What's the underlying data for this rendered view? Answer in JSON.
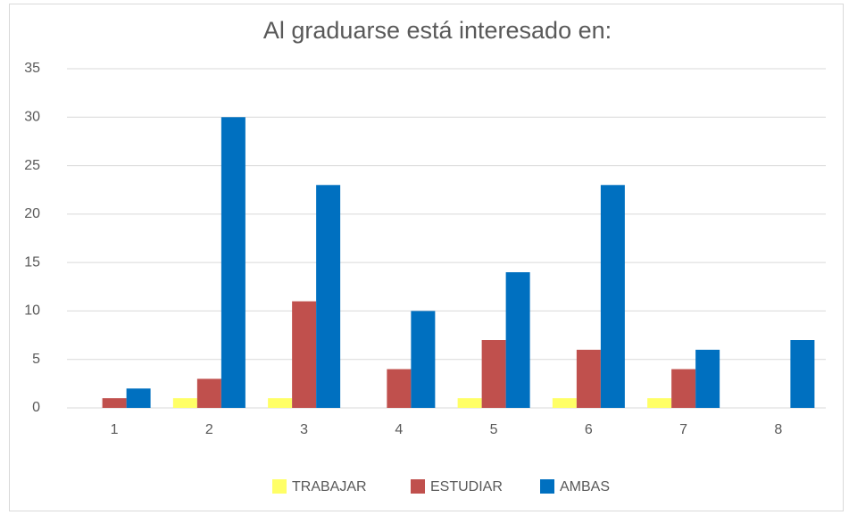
{
  "chart_data": {
    "type": "bar",
    "title": "Al graduarse está interesado en:",
    "categories": [
      "1",
      "2",
      "3",
      "4",
      "5",
      "6",
      "7",
      "8"
    ],
    "series": [
      {
        "name": "TRABAJAR",
        "color": "#ffff66",
        "values": [
          0,
          1,
          1,
          0,
          1,
          1,
          1,
          0
        ]
      },
      {
        "name": "ESTUDIAR",
        "color": "#c0504d",
        "values": [
          1,
          3,
          11,
          4,
          7,
          6,
          4,
          0
        ]
      },
      {
        "name": "AMBAS",
        "color": "#0070c0",
        "values": [
          2,
          30,
          23,
          10,
          14,
          23,
          6,
          7
        ]
      }
    ],
    "ylim": [
      0,
      35
    ],
    "yticks": [
      0,
      5,
      10,
      15,
      20,
      25,
      30,
      35
    ],
    "grid": true,
    "legend": "bottom"
  }
}
